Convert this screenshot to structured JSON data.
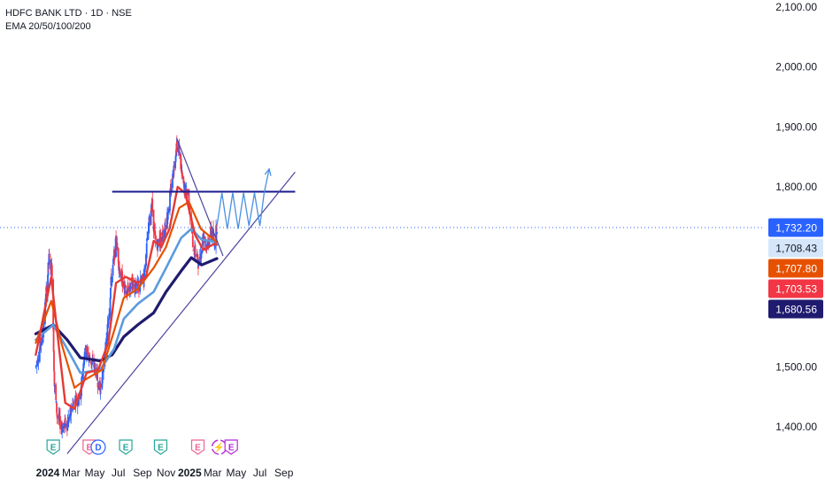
{
  "legend": {
    "symbol_line": "HDFC BANK LTD · 1D · NSE",
    "indicator_line": "EMA 20/50/100/200"
  },
  "colors": {
    "candle_up": "#2962ff",
    "candle_down": "#f23645",
    "ema20": "#e53935",
    "ema50": "#e65100",
    "ema100": "#5b9bde",
    "ema200": "#1f1b6e",
    "resistance": "#1a1a8f",
    "trendline": "#4b45a0",
    "projection": "#4a90e2",
    "event_earnings": "#26a69a",
    "event_ex": "#f06292",
    "event_div": "#2962ff",
    "event_special": "#b52bd6"
  },
  "chart_data": {
    "type": "candlestick",
    "title": "HDFC BANK LTD · 1D · NSE",
    "indicators": [
      "EMA 20",
      "EMA 50",
      "EMA 100",
      "EMA 200"
    ],
    "ylim": [
      1355,
      2115
    ],
    "y_ticks": [
      "2,100.00",
      "2,000.00",
      "1,900.00",
      "1,800.00",
      "1,500.00",
      "1,400.00"
    ],
    "x_ticks": [
      {
        "label": "2024",
        "date": "2024-01-01",
        "bold": true
      },
      {
        "label": "Mar",
        "date": "2024-03-01",
        "bold": false
      },
      {
        "label": "May",
        "date": "2024-05-01",
        "bold": false
      },
      {
        "label": "Jul",
        "date": "2024-07-01",
        "bold": false
      },
      {
        "label": "Sep",
        "date": "2024-09-01",
        "bold": false
      },
      {
        "label": "Nov",
        "date": "2024-11-01",
        "bold": false
      },
      {
        "label": "2025",
        "date": "2025-01-01",
        "bold": true
      },
      {
        "label": "Mar",
        "date": "2025-03-01",
        "bold": false
      },
      {
        "label": "May",
        "date": "2025-05-01",
        "bold": false
      },
      {
        "label": "Jul",
        "date": "2025-07-01",
        "bold": false
      },
      {
        "label": "Sep",
        "date": "2025-09-01",
        "bold": false
      }
    ],
    "price_path": [
      [
        "2023-12-01",
        1500
      ],
      [
        "2023-12-20",
        1560
      ],
      [
        "2024-01-04",
        1680
      ],
      [
        "2024-01-12",
        1660
      ],
      [
        "2024-01-18",
        1470
      ],
      [
        "2024-01-25",
        1420
      ],
      [
        "2024-02-05",
        1400
      ],
      [
        "2024-02-20",
        1405
      ],
      [
        "2024-03-05",
        1435
      ],
      [
        "2024-03-25",
        1450
      ],
      [
        "2024-04-05",
        1530
      ],
      [
        "2024-04-20",
        1510
      ],
      [
        "2024-05-01",
        1500
      ],
      [
        "2024-05-15",
        1460
      ],
      [
        "2024-05-28",
        1520
      ],
      [
        "2024-06-05",
        1580
      ],
      [
        "2024-06-12",
        1640
      ],
      [
        "2024-06-25",
        1710
      ],
      [
        "2024-07-05",
        1660
      ],
      [
        "2024-07-20",
        1620
      ],
      [
        "2024-08-05",
        1640
      ],
      [
        "2024-08-20",
        1630
      ],
      [
        "2024-09-05",
        1650
      ],
      [
        "2024-09-15",
        1720
      ],
      [
        "2024-09-25",
        1775
      ],
      [
        "2024-10-05",
        1700
      ],
      [
        "2024-10-20",
        1715
      ],
      [
        "2024-11-01",
        1740
      ],
      [
        "2024-11-15",
        1800
      ],
      [
        "2024-11-28",
        1870
      ],
      [
        "2024-12-05",
        1860
      ],
      [
        "2024-12-15",
        1800
      ],
      [
        "2024-12-28",
        1790
      ],
      [
        "2025-01-10",
        1700
      ],
      [
        "2025-01-25",
        1670
      ],
      [
        "2025-02-05",
        1720
      ],
      [
        "2025-02-15",
        1700
      ],
      [
        "2025-02-25",
        1725
      ],
      [
        "2025-03-05",
        1705
      ],
      [
        "2025-03-12",
        1735
      ]
    ],
    "series": [
      {
        "name": "EMA 20",
        "last_value": 1703.53,
        "points": [
          [
            "2023-12-01",
            1520
          ],
          [
            "2024-01-10",
            1650
          ],
          [
            "2024-01-25",
            1560
          ],
          [
            "2024-02-15",
            1440
          ],
          [
            "2024-03-10",
            1430
          ],
          [
            "2024-04-10",
            1490
          ],
          [
            "2024-05-10",
            1495
          ],
          [
            "2024-06-05",
            1540
          ],
          [
            "2024-06-25",
            1640
          ],
          [
            "2024-07-20",
            1650
          ],
          [
            "2024-08-20",
            1640
          ],
          [
            "2024-09-10",
            1650
          ],
          [
            "2024-09-30",
            1710
          ],
          [
            "2024-10-20",
            1700
          ],
          [
            "2024-11-10",
            1730
          ],
          [
            "2024-12-01",
            1800
          ],
          [
            "2024-12-20",
            1790
          ],
          [
            "2025-01-15",
            1720
          ],
          [
            "2025-02-05",
            1695
          ],
          [
            "2025-03-05",
            1705
          ],
          [
            "2025-03-12",
            1703.53
          ]
        ]
      },
      {
        "name": "EMA 50",
        "last_value": 1707.8,
        "points": [
          [
            "2023-12-01",
            1540
          ],
          [
            "2024-01-10",
            1610
          ],
          [
            "2024-02-05",
            1540
          ],
          [
            "2024-03-10",
            1465
          ],
          [
            "2024-04-10",
            1480
          ],
          [
            "2024-05-20",
            1495
          ],
          [
            "2024-06-20",
            1560
          ],
          [
            "2024-07-15",
            1615
          ],
          [
            "2024-08-20",
            1630
          ],
          [
            "2024-09-30",
            1665
          ],
          [
            "2024-11-01",
            1700
          ],
          [
            "2024-12-05",
            1765
          ],
          [
            "2024-12-30",
            1775
          ],
          [
            "2025-01-30",
            1730
          ],
          [
            "2025-03-12",
            1707.8
          ]
        ]
      },
      {
        "name": "EMA 100",
        "last_value": 1708.43,
        "points": [
          [
            "2023-12-01",
            1545
          ],
          [
            "2024-01-15",
            1570
          ],
          [
            "2024-02-20",
            1530
          ],
          [
            "2024-03-25",
            1490
          ],
          [
            "2024-05-15",
            1495
          ],
          [
            "2024-06-20",
            1530
          ],
          [
            "2024-07-15",
            1580
          ],
          [
            "2024-08-20",
            1605
          ],
          [
            "2024-09-30",
            1625
          ],
          [
            "2024-11-01",
            1665
          ],
          [
            "2024-12-10",
            1715
          ],
          [
            "2025-01-05",
            1730
          ],
          [
            "2025-02-01",
            1712
          ],
          [
            "2025-03-12",
            1708.43
          ]
        ]
      },
      {
        "name": "EMA 200",
        "last_value": 1680.56,
        "points": [
          [
            "2023-12-01",
            1555
          ],
          [
            "2024-01-15",
            1570
          ],
          [
            "2024-02-20",
            1545
          ],
          [
            "2024-03-25",
            1515
          ],
          [
            "2024-05-15",
            1510
          ],
          [
            "2024-06-15",
            1520
          ],
          [
            "2024-07-15",
            1550
          ],
          [
            "2024-08-20",
            1570
          ],
          [
            "2024-09-30",
            1590
          ],
          [
            "2024-11-01",
            1625
          ],
          [
            "2024-12-10",
            1660
          ],
          [
            "2025-01-05",
            1682
          ],
          [
            "2025-02-01",
            1670
          ],
          [
            "2025-03-12",
            1680.56
          ]
        ]
      }
    ],
    "price_labels": [
      {
        "text": "1,732.20",
        "value": 1732.2,
        "bg": "#2962ff",
        "fg": "#ffffff"
      },
      {
        "text": "1,708.43",
        "value": 1708.43,
        "bg": "#d6e6fa",
        "fg": "#131722"
      },
      {
        "text": "1,707.80",
        "value": 1707.8,
        "bg": "#e65100",
        "fg": "#ffffff"
      },
      {
        "text": "1,703.53",
        "value": 1703.53,
        "bg": "#f23645",
        "fg": "#ffffff"
      },
      {
        "text": "1,680.56",
        "value": 1680.56,
        "bg": "#1f1b6e",
        "fg": "#ffffff"
      }
    ],
    "last_price": 1732.2,
    "drawings": {
      "resistance": {
        "start": "2024-06-15",
        "end": "2025-09-30",
        "value": 1792
      },
      "support_trendline": [
        [
          "2024-02-20",
          1355
        ],
        [
          "2025-09-30",
          1825
        ]
      ],
      "down_trendline": [
        [
          "2024-11-28",
          1882
        ],
        [
          "2025-03-28",
          1685
        ]
      ],
      "projection": [
        [
          "2025-03-12",
          1735
        ],
        [
          "2025-03-25",
          1790
        ],
        [
          "2025-04-08",
          1730
        ],
        [
          "2025-04-22",
          1790
        ],
        [
          "2025-05-06",
          1730
        ],
        [
          "2025-05-20",
          1790
        ],
        [
          "2025-06-03",
          1735
        ],
        [
          "2025-06-17",
          1790
        ],
        [
          "2025-07-01",
          1735
        ],
        [
          "2025-07-12",
          1790
        ],
        [
          "2025-07-25",
          1830
        ]
      ]
    },
    "events": [
      {
        "date": "2024-01-15",
        "letter": "E",
        "kind": "earnings"
      },
      {
        "date": "2024-04-17",
        "letter": "E",
        "kind": "ex"
      },
      {
        "date": "2024-05-10",
        "letter": "D",
        "kind": "div"
      },
      {
        "date": "2024-07-20",
        "letter": "E",
        "kind": "earnings"
      },
      {
        "date": "2024-10-18",
        "letter": "E",
        "kind": "earnings"
      },
      {
        "date": "2025-01-22",
        "letter": "E",
        "kind": "ex"
      },
      {
        "date": "2025-03-18",
        "letter": "⚡",
        "kind": "special"
      },
      {
        "date": "2025-04-18",
        "letter": "E",
        "kind": "special"
      }
    ],
    "grid": false
  }
}
